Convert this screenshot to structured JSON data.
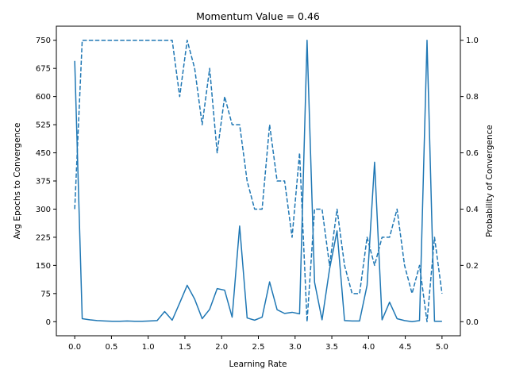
{
  "chart_data": {
    "type": "line",
    "title": "Momentum Value = 0.46",
    "xlabel": "Learning Rate",
    "ylabel_left": "Avg Epochs to Convergence",
    "ylabel_right": "Probability of Convergence",
    "xlim": [
      -0.25,
      5.25
    ],
    "ylim_left": [
      -37.5,
      787.5
    ],
    "ylim_right": [
      -0.05,
      1.05
    ],
    "x_ticks": [
      "0.0",
      "0.5",
      "1.0",
      "1.5",
      "2.0",
      "2.5",
      "3.0",
      "3.5",
      "4.0",
      "4.5",
      "5.0"
    ],
    "y_left_ticks": [
      "0",
      "75",
      "150",
      "225",
      "300",
      "375",
      "450",
      "525",
      "600",
      "675",
      "750"
    ],
    "y_right_ticks": [
      "0.0",
      "0.2",
      "0.4",
      "0.6",
      "0.8",
      "1.0"
    ],
    "grid": false,
    "color": "#1f77b4",
    "x": [
      0.0,
      0.102,
      0.204,
      0.306,
      0.408,
      0.51,
      0.612,
      0.714,
      0.816,
      0.918,
      1.02,
      1.122,
      1.224,
      1.327,
      1.429,
      1.531,
      1.633,
      1.735,
      1.837,
      1.939,
      2.041,
      2.143,
      2.245,
      2.347,
      2.449,
      2.551,
      2.653,
      2.755,
      2.857,
      2.959,
      3.061,
      3.163,
      3.265,
      3.367,
      3.469,
      3.571,
      3.673,
      3.776,
      3.878,
      3.98,
      4.082,
      4.184,
      4.286,
      4.388,
      4.49,
      4.592,
      4.694,
      4.796,
      4.898,
      5.0
    ],
    "series": [
      {
        "axis": "left",
        "style": "solid",
        "values": [
          695,
          8,
          5,
          3,
          2,
          1,
          1,
          2,
          1,
          1,
          2,
          3,
          27,
          4,
          50,
          97,
          60,
          8,
          33,
          88,
          84,
          12,
          255,
          10,
          4,
          12,
          106,
          32,
          22,
          25,
          21,
          750,
          105,
          5,
          140,
          242,
          3,
          2,
          2,
          97,
          425,
          5,
          52,
          8,
          3,
          0,
          3,
          750,
          1,
          1
        ]
      },
      {
        "axis": "right",
        "style": "dashed",
        "values": [
          0.4,
          1.0,
          1.0,
          1.0,
          1.0,
          1.0,
          1.0,
          1.0,
          1.0,
          1.0,
          1.0,
          1.0,
          1.0,
          1.0,
          0.8,
          1.0,
          0.9,
          0.7,
          0.9,
          0.6,
          0.8,
          0.7,
          0.7,
          0.5,
          0.4,
          0.4,
          0.7,
          0.5,
          0.5,
          0.3,
          0.6,
          0.0,
          0.4,
          0.4,
          0.2,
          0.4,
          0.2,
          0.1,
          0.1,
          0.3,
          0.2,
          0.3,
          0.3,
          0.4,
          0.2,
          0.1,
          0.2,
          0.0,
          0.3,
          0.1
        ]
      }
    ]
  }
}
